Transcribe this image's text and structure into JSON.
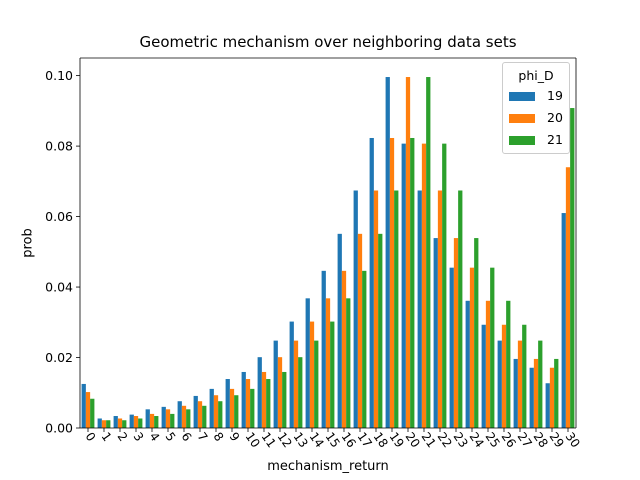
{
  "chart_data": {
    "type": "bar",
    "title": "Geometric mechanism over neighboring data sets",
    "xlabel": "mechanism_return",
    "ylabel": "prob",
    "ylim": [
      0,
      0.105
    ],
    "yticks": [
      "0.00",
      "0.02",
      "0.04",
      "0.06",
      "0.08",
      "0.10"
    ],
    "grid": false,
    "legend": {
      "title": "phi_D",
      "placement": "top-right"
    },
    "categories": [
      "0",
      "1",
      "2",
      "3",
      "4",
      "5",
      "6",
      "7",
      "8",
      "9",
      "10",
      "11",
      "12",
      "13",
      "14",
      "15",
      "16",
      "17",
      "18",
      "19",
      "20",
      "21",
      "22",
      "23",
      "24",
      "25",
      "26",
      "27",
      "28",
      "29",
      "30"
    ],
    "series": [
      {
        "name": "19",
        "color": "#1f77b4",
        "values": [
          0.0125,
          0.0027,
          0.0034,
          0.0038,
          0.0053,
          0.006,
          0.0076,
          0.0091,
          0.0111,
          0.0139,
          0.0159,
          0.0201,
          0.0248,
          0.0302,
          0.0368,
          0.0446,
          0.0551,
          0.0674,
          0.0823,
          0.0996,
          0.0807,
          0.0674,
          0.0539,
          0.0455,
          0.0361,
          0.0293,
          0.0248,
          0.0196,
          0.0171,
          0.0127,
          0.061
        ]
      },
      {
        "name": "20",
        "color": "#ff7f0e",
        "values": [
          0.0102,
          0.0022,
          0.0027,
          0.0034,
          0.004,
          0.0053,
          0.0063,
          0.0076,
          0.0093,
          0.0111,
          0.0139,
          0.0159,
          0.0201,
          0.0248,
          0.0302,
          0.0368,
          0.0446,
          0.0551,
          0.0674,
          0.0823,
          0.0996,
          0.0807,
          0.0674,
          0.0539,
          0.0455,
          0.0361,
          0.0293,
          0.0248,
          0.0196,
          0.0171,
          0.074
        ]
      },
      {
        "name": "21",
        "color": "#2ca02c",
        "values": [
          0.0083,
          0.0022,
          0.0022,
          0.0027,
          0.0034,
          0.004,
          0.0053,
          0.0063,
          0.0076,
          0.0093,
          0.0111,
          0.0139,
          0.0159,
          0.0201,
          0.0248,
          0.0302,
          0.0368,
          0.0446,
          0.0551,
          0.0674,
          0.0823,
          0.0996,
          0.0807,
          0.0674,
          0.0539,
          0.0455,
          0.0361,
          0.0293,
          0.0248,
          0.0196,
          0.0908
        ]
      }
    ]
  }
}
